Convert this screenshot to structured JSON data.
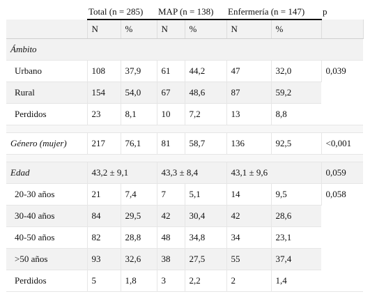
{
  "header": {
    "groups": [
      "Total (n = 285)",
      "MAP (n = 138)",
      "Enfermería (n = 147)",
      "p"
    ],
    "sub": [
      "N",
      "%",
      "N",
      "%",
      "N",
      "%"
    ]
  },
  "ambito": {
    "label": "Ámbito",
    "p": "0,039",
    "rows": [
      {
        "label": "Urbano",
        "v": [
          "108",
          "37,9",
          "61",
          "44,2",
          "47",
          "32,0"
        ]
      },
      {
        "label": "Rural",
        "v": [
          "154",
          "54,0",
          "67",
          "48,6",
          "87",
          "59,2"
        ]
      },
      {
        "label": "Perdidos",
        "v": [
          "23",
          "8,1",
          "10",
          "7,2",
          "13",
          "8,8"
        ]
      }
    ]
  },
  "genero": {
    "label": "Género (mujer)",
    "v": [
      "217",
      "76,1",
      "81",
      "58,7",
      "136",
      "92,5"
    ],
    "p": "<0,001"
  },
  "edad": {
    "label": "Edad",
    "means": [
      "43,2 ± 9,1",
      "43,3 ± 8,4",
      "43,1 ± 9,6"
    ],
    "p_mean": "0,059",
    "p_groups": "0,058",
    "rows": [
      {
        "label": "20-30 años",
        "v": [
          "21",
          "7,4",
          "7",
          "5,1",
          "14",
          "9,5"
        ]
      },
      {
        "label": "30-40 años",
        "v": [
          "84",
          "29,5",
          "42",
          "30,4",
          "42",
          "28,6"
        ]
      },
      {
        "label": "40-50 años",
        "v": [
          "82",
          "28,8",
          "48",
          "34,8",
          "34",
          "23,1"
        ]
      },
      {
        "label": ">50 años",
        "v": [
          "93",
          "32,6",
          "38",
          "27,5",
          "55",
          "37,4"
        ]
      },
      {
        "label": "Perdidos",
        "v": [
          "5",
          "1,8",
          "3",
          "2,2",
          "2",
          "1,4"
        ]
      }
    ]
  }
}
